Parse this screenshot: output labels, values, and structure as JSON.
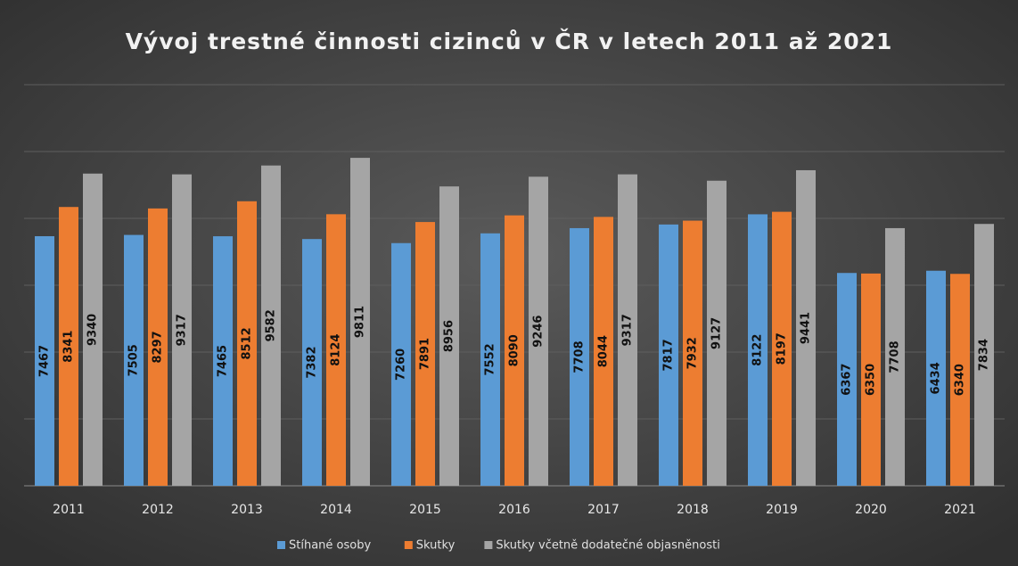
{
  "chart_data": {
    "type": "bar",
    "title": "Vývoj trestné činnosti cizinců v ČR v letech 2011 až 2021",
    "categories": [
      "2011",
      "2012",
      "2013",
      "2014",
      "2015",
      "2016",
      "2017",
      "2018",
      "2019",
      "2020",
      "2021"
    ],
    "series": [
      {
        "name": "Stíhané osoby",
        "color": "#5b9bd5",
        "values": [
          7467,
          7505,
          7465,
          7382,
          7260,
          7552,
          7708,
          7817,
          8122,
          6367,
          6434
        ]
      },
      {
        "name": "Skutky",
        "color": "#ed7d31",
        "values": [
          8341,
          8297,
          8512,
          8124,
          7891,
          8090,
          8044,
          7932,
          8197,
          6350,
          6340
        ]
      },
      {
        "name": "Skutky včetně dodatečné objasněnosti",
        "color": "#a5a5a5",
        "values": [
          9340,
          9317,
          9582,
          9811,
          8956,
          9246,
          9317,
          9127,
          9441,
          7708,
          7834
        ]
      }
    ],
    "ylim": [
      0,
      12000
    ],
    "yticks": [
      0,
      2000,
      4000,
      6000,
      8000,
      10000,
      12000
    ],
    "grid": true,
    "legend": "bottom"
  }
}
